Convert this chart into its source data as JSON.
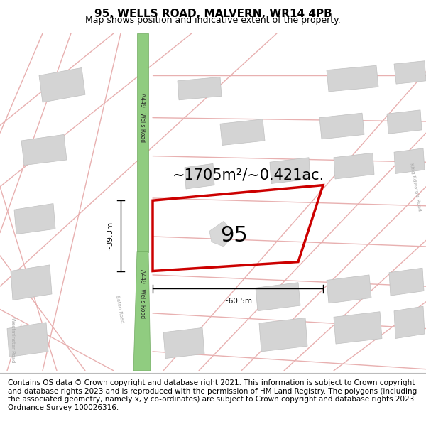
{
  "title": "95, WELLS ROAD, MALVERN, WR14 4PB",
  "subtitle": "Map shows position and indicative extent of the property.",
  "footer": "Contains OS data © Crown copyright and database right 2021. This information is subject to Crown copyright and database rights 2023 and is reproduced with the permission of HM Land Registry. The polygons (including the associated geometry, namely x, y co-ordinates) are subject to Crown copyright and database rights 2023 Ordnance Survey 100026316.",
  "bg_color": "#ffffff",
  "map_bg": "#f7f0f0",
  "road_pink": "#e8b0b0",
  "green_road_fill": "#90cc80",
  "green_road_edge": "#70aa60",
  "property_color": "#cc0000",
  "property_lw": 2.5,
  "building_fill": "#d4d4d4",
  "building_edge": "#c0c0c0",
  "dim_color": "#000000",
  "title_fontsize": 11,
  "subtitle_fontsize": 9,
  "footer_fontsize": 7.5,
  "area_label": "~1705m²/~0.421ac.",
  "area_fontsize": 15,
  "label_95_fontsize": 22,
  "dim_39": "~39.3m",
  "dim_60": "~60.5m",
  "road_label": "A449 - Wells Road",
  "eaton_label": "Eaton Road",
  "westminster_label": "Westminster Road",
  "king_edward_label": "King Edward's Road"
}
